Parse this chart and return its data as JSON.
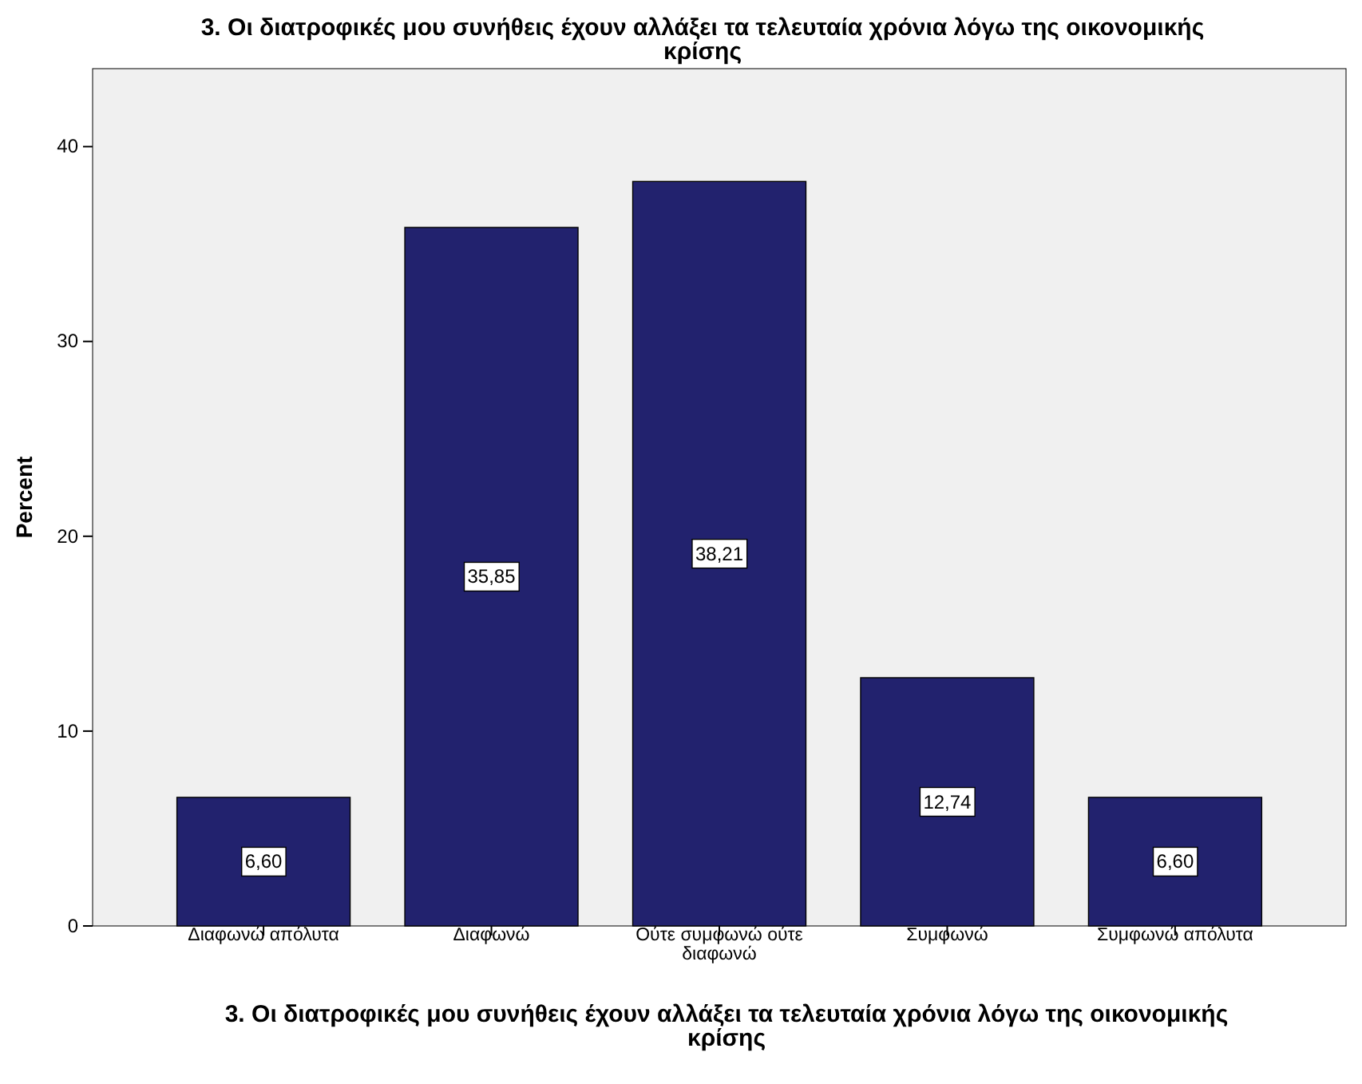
{
  "chart_data": {
    "type": "bar",
    "title": "3. Οι διατροφικές μου συνήθεις έχουν αλλάξει τα τελευταία χρόνια λόγω της οικονομικής κρίσης",
    "xlabel": "3. Οι διατροφικές μου συνήθεις έχουν αλλάξει τα τελευταία χρόνια λόγω της οικονομικής κρίσης",
    "ylabel": "Percent",
    "categories": [
      "Διαφωνώ απόλυτα",
      "Διαφωνώ",
      "Ούτε συμφωνώ ούτε διαφωνώ",
      "Συμφωνώ",
      "Συμφωνώ απόλυτα"
    ],
    "values": [
      6.6,
      35.85,
      38.21,
      12.74,
      6.6
    ],
    "value_labels": [
      "6,60",
      "35,85",
      "38,21",
      "12,74",
      "6,60"
    ],
    "color": "#22226e",
    "ylim": [
      0,
      44
    ],
    "yticks": [
      0,
      10,
      20,
      30,
      40
    ],
    "grid": false
  }
}
